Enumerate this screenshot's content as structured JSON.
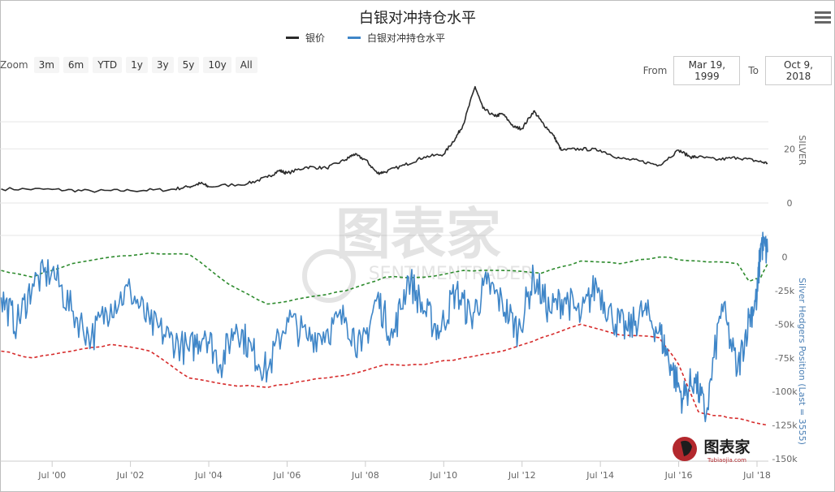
{
  "title": "白银对冲持仓水平",
  "legend": [
    {
      "label": "银价",
      "color": "#2b2b2b"
    },
    {
      "label": "白银对冲持仓水平",
      "color": "#3f86c8"
    }
  ],
  "zoom": {
    "label": "Zoom",
    "buttons": [
      "3m",
      "6m",
      "YTD",
      "1y",
      "3y",
      "5y",
      "10y",
      "All"
    ]
  },
  "range": {
    "from_label": "From",
    "from_value": "Mar 19, 1999",
    "to_label": "To",
    "to_value": "Oct 9, 2018"
  },
  "watermarks": {
    "main": "图表家",
    "sub": "SENTIMENTRADER",
    "logo_text": "图表家",
    "logo_url": "Tubiaojia.com"
  },
  "chart_data": [
    {
      "type": "line",
      "name": "silver_price",
      "ylabel": "SILVER",
      "ylim": [
        -9,
        45
      ],
      "yticks": [
        0,
        20
      ],
      "xlim": [
        1999.21,
        2018.77
      ],
      "xticks": [
        "Jul '00",
        "Jul '02",
        "Jul '04",
        "Jul '06",
        "Jul '08",
        "Jul '10",
        "Jul '12",
        "Jul '14",
        "Jul '16",
        "Jul '18"
      ],
      "grid": true,
      "series": [
        {
          "name": "银价",
          "color": "#2b2b2b",
          "x": [
            1999.2,
            2000.5,
            2001.5,
            2002.5,
            2003.5,
            2004.0,
            2004.3,
            2004.5,
            2005.5,
            2006.0,
            2006.3,
            2006.5,
            2007.0,
            2007.5,
            2008.0,
            2008.2,
            2008.5,
            2008.8,
            2009.0,
            2009.5,
            2010.0,
            2010.5,
            2010.8,
            2011.0,
            2011.3,
            2011.5,
            2011.8,
            2012.0,
            2012.3,
            2012.5,
            2012.8,
            2013.0,
            2013.3,
            2013.5,
            2014.0,
            2014.5,
            2015.0,
            2015.5,
            2016.0,
            2016.5,
            2016.8,
            2017.0,
            2017.5,
            2018.0,
            2018.5,
            2018.77
          ],
          "values": [
            5.2,
            5.0,
            4.4,
            4.6,
            4.9,
            6.0,
            7.3,
            6.0,
            7.2,
            9.5,
            12.0,
            11.0,
            13.3,
            12.9,
            16.0,
            18.0,
            16.0,
            11.0,
            11.5,
            14.0,
            17.0,
            18.0,
            24.0,
            29.0,
            43.0,
            35.0,
            32.0,
            33.0,
            28.0,
            27.5,
            34.0,
            30.0,
            25.0,
            19.5,
            20.0,
            19.5,
            16.5,
            15.5,
            14.0,
            19.5,
            17.0,
            17.0,
            16.0,
            16.8,
            15.5,
            14.7
          ]
        }
      ]
    },
    {
      "type": "line",
      "name": "silver_hedgers_position",
      "ylabel": "Silver Hedgers Position (Last = 3555)",
      "ylim": [
        -150000,
        10000
      ],
      "yticks": [
        0,
        -25000,
        -50000,
        -75000,
        -100000,
        -125000,
        -150000
      ],
      "ytick_labels": [
        "0",
        "-25k",
        "-50k",
        "-75k",
        "-100k",
        "-125k",
        "-150k"
      ],
      "xlim": [
        1999.21,
        2018.77
      ],
      "series": [
        {
          "name": "白银对冲持仓水平",
          "color": "#3f86c8",
          "dash": "solid",
          "x": [
            1999.2,
            1999.6,
            2000.0,
            2000.5,
            2001.0,
            2001.5,
            2002.0,
            2002.5,
            2003.0,
            2003.5,
            2004.0,
            2004.4,
            2004.8,
            2005.2,
            2005.6,
            2006.0,
            2006.5,
            2007.0,
            2007.5,
            2008.0,
            2008.4,
            2008.8,
            2009.2,
            2009.6,
            2010.0,
            2010.4,
            2010.8,
            2011.2,
            2011.6,
            2012.0,
            2012.4,
            2012.8,
            2013.2,
            2013.6,
            2014.0,
            2014.4,
            2014.8,
            2015.2,
            2015.6,
            2016.0,
            2016.3,
            2016.6,
            2016.9,
            2017.2,
            2017.6,
            2018.0,
            2018.3,
            2018.5,
            2018.6,
            2018.77
          ],
          "values": [
            -30000,
            -50000,
            -20000,
            -10000,
            -40000,
            -60000,
            -35000,
            -25000,
            -50000,
            -60000,
            -70000,
            -55000,
            -80000,
            -50000,
            -70000,
            -85000,
            -45000,
            -60000,
            -55000,
            -45000,
            -70000,
            -30000,
            -60000,
            -15000,
            -40000,
            -55000,
            -25000,
            -45000,
            -20000,
            -35000,
            -55000,
            -15000,
            -40000,
            -30000,
            -45000,
            -20000,
            -45000,
            -55000,
            -40000,
            -55000,
            -80000,
            -105000,
            -90000,
            -118000,
            -35000,
            -85000,
            -45000,
            -30000,
            10000,
            3555
          ]
        },
        {
          "name": "upper band",
          "color": "#2e8b2e",
          "dash": "dashed",
          "x": [
            1999.2,
            2000.0,
            2001.0,
            2002.0,
            2003.0,
            2004.0,
            2005.0,
            2006.0,
            2007.0,
            2008.0,
            2009.0,
            2010.0,
            2011.0,
            2012.0,
            2013.0,
            2014.0,
            2015.0,
            2016.0,
            2017.0,
            2018.0,
            2018.3,
            2018.6,
            2018.77
          ],
          "values": [
            -10000,
            -15000,
            -5000,
            0,
            3000,
            2000,
            -20000,
            -35000,
            -30000,
            -25000,
            -15000,
            -15000,
            -10000,
            -10000,
            -12000,
            -3000,
            -5000,
            0,
            -3000,
            -5000,
            -18000,
            -15000,
            -5000
          ]
        },
        {
          "name": "lower band",
          "color": "#d62b2b",
          "dash": "dashed",
          "x": [
            1999.2,
            2000.0,
            2001.0,
            2002.0,
            2003.0,
            2004.0,
            2005.0,
            2006.0,
            2007.0,
            2008.0,
            2009.0,
            2010.0,
            2011.0,
            2012.0,
            2013.0,
            2014.0,
            2015.0,
            2016.0,
            2016.5,
            2017.0,
            2017.5,
            2018.0,
            2018.77
          ],
          "values": [
            -70000,
            -75000,
            -70000,
            -65000,
            -70000,
            -90000,
            -95000,
            -97000,
            -92000,
            -88000,
            -80000,
            -80000,
            -75000,
            -70000,
            -60000,
            -50000,
            -58000,
            -60000,
            -80000,
            -115000,
            -118000,
            -120000,
            -125000
          ]
        }
      ]
    }
  ]
}
